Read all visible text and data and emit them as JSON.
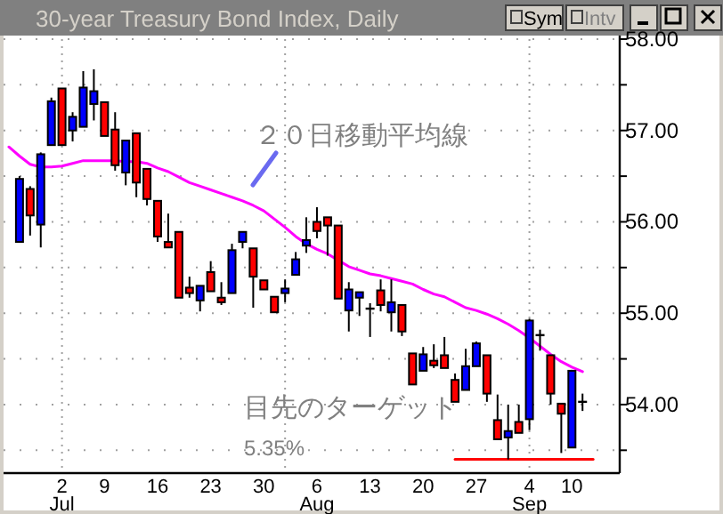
{
  "chart_data": {
    "type": "candlestick",
    "title": "30-year Treasury Bond Index, Daily",
    "categories": [
      null,
      null,
      null,
      null,
      null,
      "2\nJul",
      null,
      null,
      null,
      "9",
      null,
      null,
      null,
      null,
      "16",
      null,
      null,
      null,
      null,
      "23",
      null,
      null,
      null,
      null,
      "30",
      null,
      null,
      null,
      null,
      "6\nAug",
      null,
      null,
      null,
      null,
      "13",
      null,
      null,
      null,
      null,
      "20",
      null,
      null,
      null,
      null,
      "27",
      null,
      null,
      null,
      null,
      "4\nSep",
      null,
      null,
      null,
      "10",
      null,
      null,
      null,
      null
    ],
    "ylim": [
      53.25,
      58.0
    ],
    "yticks": [
      {
        "value": 53.5,
        "label": null
      },
      {
        "value": 54,
        "label": "54.00"
      },
      {
        "value": 54.5,
        "label": null
      },
      {
        "value": 55,
        "label": "55.00"
      },
      {
        "value": 55.5,
        "label": null
      },
      {
        "value": 56,
        "label": "56.00"
      },
      {
        "value": 56.5,
        "label": null
      },
      {
        "value": 57,
        "label": "57.00"
      },
      {
        "value": 57.5,
        "label": null
      },
      {
        "value": 58,
        "label": "58.00"
      }
    ],
    "grid": "y",
    "annotations": [
      "２０日移動平均線",
      "目先のターゲット",
      "5.35%",
      "Sym",
      "Intv"
    ],
    "series": [
      {
        "type": "candlestick",
        "ohlc": [
          null,
          [
            55.78,
            56.5,
            55.78,
            56.47
          ],
          [
            56.36,
            56.39,
            55.85,
            56.07
          ],
          [
            55.97,
            56.76,
            55.72,
            56.74
          ],
          [
            56.84,
            57.36,
            56.84,
            57.32
          ],
          [
            57.46,
            57.46,
            56.84,
            56.84
          ],
          [
            57.0,
            57.2,
            56.88,
            57.15
          ],
          [
            57.04,
            57.65,
            57.04,
            57.47
          ],
          [
            57.29,
            57.67,
            57.11,
            57.43
          ],
          [
            57.31,
            57.31,
            56.94,
            56.94
          ],
          [
            57.01,
            57.2,
            56.56,
            56.62
          ],
          [
            56.54,
            56.89,
            56.4,
            56.89
          ],
          [
            56.97,
            56.97,
            56.27,
            56.43
          ],
          [
            56.58,
            56.58,
            56.18,
            56.25
          ],
          [
            56.23,
            56.23,
            55.78,
            55.84
          ],
          [
            55.78,
            56.09,
            55.72,
            55.72
          ],
          [
            55.89,
            55.89,
            55.17,
            55.17
          ],
          [
            55.28,
            55.4,
            55.17,
            55.22
          ],
          [
            55.14,
            55.3,
            55.02,
            55.3
          ],
          [
            55.45,
            55.57,
            55.24,
            55.24
          ],
          [
            55.17,
            55.34,
            55.09,
            55.12
          ],
          [
            55.22,
            55.76,
            55.22,
            55.69
          ],
          [
            55.78,
            55.89,
            55.71,
            55.89
          ],
          [
            55.71,
            55.71,
            55.06,
            55.4
          ],
          [
            55.36,
            55.36,
            55.26,
            55.26
          ],
          [
            55.18,
            55.18,
            55.01,
            55.01
          ],
          [
            55.22,
            55.37,
            55.12,
            55.27
          ],
          [
            55.42,
            55.67,
            55.42,
            55.59
          ],
          [
            55.74,
            56.05,
            55.66,
            55.8
          ],
          [
            56.0,
            56.16,
            55.82,
            55.9
          ],
          [
            56.05,
            56.05,
            55.63,
            55.96
          ],
          [
            55.96,
            55.96,
            55.16,
            55.16
          ],
          [
            55.03,
            55.34,
            54.8,
            55.26
          ],
          [
            55.17,
            55.23,
            54.97,
            55.23
          ],
          [
            55.05,
            55.11,
            54.74,
            55.05
          ],
          [
            55.25,
            55.37,
            55.02,
            55.09
          ],
          [
            55.01,
            55.37,
            54.8,
            55.12
          ],
          [
            55.09,
            55.09,
            54.75,
            54.8
          ],
          [
            54.56,
            54.56,
            54.22,
            54.22
          ],
          [
            54.37,
            54.63,
            54.37,
            54.55
          ],
          [
            54.48,
            54.66,
            54.4,
            54.43
          ],
          [
            54.54,
            54.74,
            54.4,
            54.4
          ],
          [
            54.27,
            54.34,
            54.03,
            54.03
          ],
          [
            54.16,
            54.61,
            54.16,
            54.42
          ],
          [
            54.42,
            54.69,
            54.42,
            54.67
          ],
          [
            54.54,
            54.54,
            54.03,
            54.12
          ],
          [
            53.83,
            54.11,
            53.62,
            53.62
          ],
          [
            53.64,
            54.0,
            53.4,
            53.71
          ],
          [
            53.81,
            54.0,
            53.69,
            53.69
          ],
          [
            53.84,
            54.94,
            53.72,
            54.92
          ],
          [
            54.76,
            54.82,
            54.59,
            54.76
          ],
          [
            54.54,
            54.54,
            54.0,
            54.12
          ],
          [
            54.01,
            54.01,
            53.47,
            53.9
          ],
          [
            53.53,
            54.38,
            53.53,
            54.37
          ],
          [
            54.03,
            54.12,
            53.93,
            54.03
          ],
          null,
          null,
          null
        ],
        "colors": [
          null,
          "#0000ff",
          "#ff0000",
          "#0000ff",
          "#0000ff",
          "#ff0000",
          "#0000ff",
          "#0000ff",
          "#0000ff",
          "#ff0000",
          "#ff0000",
          "#0000ff",
          "#ff0000",
          "#ff0000",
          "#ff0000",
          "#ff0000",
          "#ff0000",
          "#ff0000",
          "#0000ff",
          "#ff0000",
          "#ff0000",
          "#0000ff",
          "#0000ff",
          "#ff0000",
          "#ff0000",
          "#ff0000",
          "#0000ff",
          "#0000ff",
          "#0000ff",
          "#ff0000",
          "#ff0000",
          "#ff0000",
          "#0000ff",
          "#0000ff",
          "#000000",
          "#ff0000",
          "#0000ff",
          "#ff0000",
          "#ff0000",
          "#0000ff",
          "#ff0000",
          "#ff0000",
          "#ff0000",
          "#0000ff",
          "#0000ff",
          "#ff0000",
          "#ff0000",
          "#0000ff",
          "#ff0000",
          "#0000ff",
          "#000000",
          "#ff0000",
          "#ff0000",
          "#0000ff",
          "#000000",
          null,
          null,
          null
        ]
      },
      {
        "type": "line",
        "color": "#ff00ff",
        "values": [
          56.82,
          56.72,
          56.63,
          56.6,
          56.6,
          56.61,
          56.64,
          56.67,
          56.67,
          56.67,
          56.67,
          56.66,
          56.66,
          56.64,
          56.59,
          56.55,
          56.49,
          56.43,
          56.39,
          56.35,
          56.31,
          56.27,
          56.23,
          56.18,
          56.12,
          56.03,
          55.94,
          55.84,
          55.76,
          55.7,
          55.65,
          55.58,
          55.51,
          55.47,
          55.43,
          55.41,
          55.38,
          55.35,
          55.32,
          55.26,
          55.21,
          55.18,
          55.12,
          55.06,
          55.03,
          54.99,
          54.94,
          54.88,
          54.81,
          54.73,
          54.64,
          54.55,
          54.47,
          54.41,
          54.36,
          null,
          null,
          null
        ]
      },
      {
        "type": "line",
        "color": "#ff0000",
        "values": [
          null,
          null,
          null,
          null,
          null,
          null,
          null,
          null,
          null,
          null,
          null,
          null,
          null,
          null,
          null,
          null,
          null,
          null,
          null,
          null,
          null,
          null,
          null,
          null,
          null,
          null,
          null,
          null,
          null,
          null,
          null,
          null,
          null,
          null,
          null,
          null,
          null,
          null,
          null,
          null,
          null,
          null,
          53.4,
          53.4,
          53.4,
          53.4,
          53.4,
          53.4,
          53.4,
          53.4,
          53.4,
          53.4,
          53.4,
          53.4,
          53.4,
          53.4,
          null,
          null
        ]
      }
    ]
  }
}
